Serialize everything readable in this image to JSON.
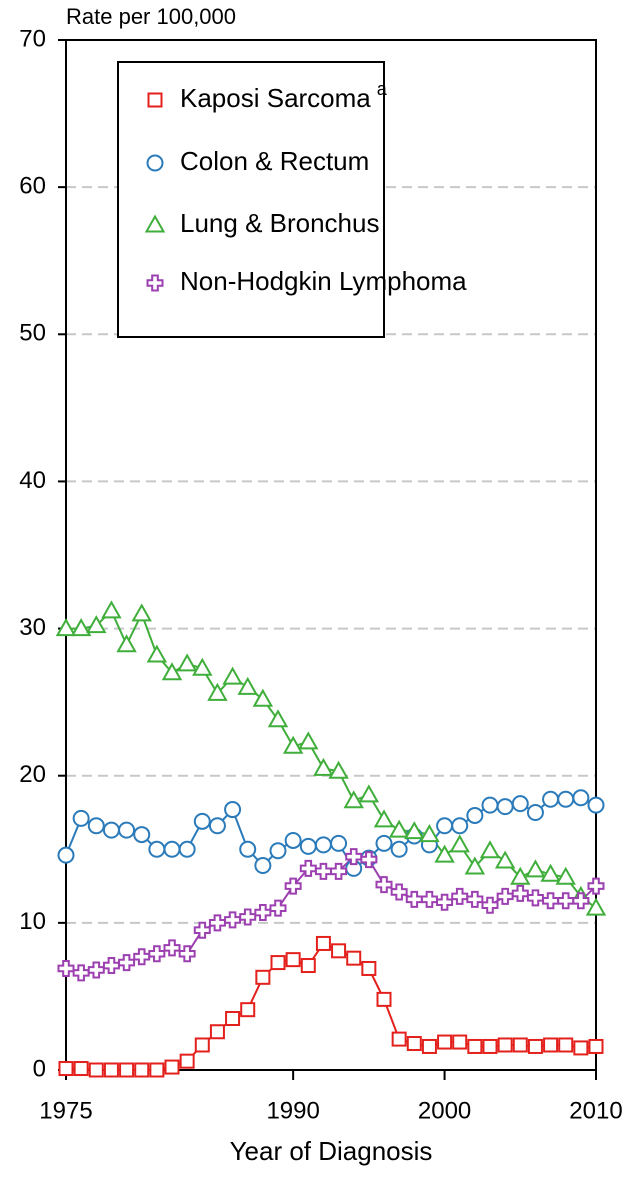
{
  "chart_data": {
    "type": "line",
    "y_label": "Rate per 100,000",
    "x_label": "Year of Diagnosis",
    "x": [
      1975,
      1976,
      1977,
      1978,
      1979,
      1980,
      1981,
      1982,
      1983,
      1984,
      1985,
      1986,
      1987,
      1988,
      1989,
      1990,
      1991,
      1992,
      1993,
      1994,
      1995,
      1996,
      1997,
      1998,
      1999,
      2000,
      2001,
      2002,
      2003,
      2004,
      2005,
      2006,
      2007,
      2008,
      2009,
      2010
    ],
    "xlim": [
      1975,
      2010
    ],
    "xticks": [
      1975,
      1990,
      2000,
      2010
    ],
    "ylim": [
      0,
      70
    ],
    "yticks": [
      0,
      10,
      20,
      30,
      40,
      50,
      60,
      70
    ],
    "grid": true,
    "legend": "top",
    "series": [
      {
        "name": "Kaposi Sarcoma",
        "name_note": "a",
        "color": "#e3201c",
        "marker": "square",
        "values": [
          0.1,
          0.1,
          0,
          0,
          0,
          0,
          0,
          0.2,
          0.6,
          1.7,
          2.6,
          3.5,
          4.1,
          6.3,
          7.3,
          7.5,
          7.1,
          8.6,
          8.1,
          7.6,
          6.9,
          4.8,
          2.1,
          1.8,
          1.6,
          1.9,
          1.9,
          1.6,
          1.6,
          1.7,
          1.7,
          1.6,
          1.7,
          1.7,
          1.5,
          1.6
        ]
      },
      {
        "name": "Colon & Rectum",
        "color": "#2b7bba",
        "marker": "circle",
        "values": [
          14.6,
          17.1,
          16.6,
          16.3,
          16.3,
          16,
          15,
          15,
          15,
          16.9,
          16.6,
          17.7,
          15,
          13.9,
          14.9,
          15.6,
          15.2,
          15.3,
          15.4,
          13.7,
          14.4,
          15.4,
          15,
          15.9,
          15.3,
          16.6,
          16.6,
          17.3,
          18,
          17.9,
          18.1,
          17.5,
          18.4,
          18.4,
          18.5,
          18
        ]
      },
      {
        "name": "Lung & Bronchus",
        "color": "#3fae3a",
        "marker": "triangle",
        "values": [
          30,
          30,
          30.2,
          31.2,
          28.9,
          31,
          28.2,
          27,
          27.6,
          27.3,
          25.6,
          26.7,
          26,
          25.2,
          23.8,
          22,
          22.3,
          20.5,
          20.3,
          18.3,
          18.7,
          17,
          16.3,
          16.2,
          16,
          14.6,
          15.3,
          13.8,
          14.9,
          14.2,
          13.1,
          13.6,
          13.3,
          13.1,
          11.8,
          11
        ]
      },
      {
        "name": "Non-Hodgkin Lymphoma",
        "color": "#9c3fb0",
        "marker": "plus",
        "values": [
          6.9,
          6.6,
          6.8,
          7.1,
          7.3,
          7.7,
          7.9,
          8.3,
          7.9,
          9.5,
          10,
          10.2,
          10.4,
          10.7,
          11,
          12.5,
          13.7,
          13.5,
          13.5,
          14.5,
          14.3,
          12.6,
          12.1,
          11.6,
          11.6,
          11.4,
          11.8,
          11.6,
          11.2,
          11.8,
          12,
          11.7,
          11.5,
          11.5,
          11.5,
          12.5
        ]
      }
    ]
  }
}
